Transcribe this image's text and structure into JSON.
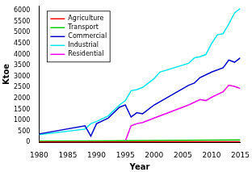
{
  "chart_data": {
    "type": "line",
    "x_label": "Year",
    "y_label": "Ktoe",
    "xlim": [
      1980,
      2015
    ],
    "xticks": [
      1980,
      1985,
      1990,
      1995,
      2000,
      2005,
      2010,
      2015
    ],
    "ylim": [
      0,
      6200
    ],
    "yticks": [
      0,
      500,
      1000,
      1500,
      2000,
      2500,
      3000,
      3500,
      4000,
      4500,
      5000,
      5500,
      6000
    ],
    "grid": false,
    "legend": "upper left",
    "series": [
      {
        "name": "Agriculture",
        "color": "#ff0000",
        "x": [
          1980,
          1990,
          1995,
          2000,
          2005,
          2010,
          2015
        ],
        "values": [
          15,
          18,
          20,
          22,
          25,
          28,
          30
        ]
      },
      {
        "name": "Transport",
        "color": "#00cc00",
        "x": [
          1980,
          1990,
          1995,
          2000,
          2005,
          2010,
          2015
        ],
        "values": [
          50,
          60,
          70,
          80,
          90,
          100,
          110
        ]
      },
      {
        "name": "Commercial",
        "color": "#0000cc",
        "x": [
          1980,
          1988,
          1989,
          1990,
          1992,
          1994,
          1995,
          1996,
          1997,
          1998,
          2000,
          2006,
          2007,
          2008,
          2010,
          2012,
          2013,
          2014,
          2015
        ],
        "values": [
          380,
          750,
          280,
          850,
          1100,
          1600,
          1700,
          1150,
          1350,
          1300,
          1700,
          2600,
          2700,
          2950,
          3200,
          3400,
          3750,
          3650,
          3850
        ]
      },
      {
        "name": "Industrial",
        "color": "#00e5ee",
        "x": [
          1980,
          1988,
          1989,
          1990,
          1992,
          1994,
          1995,
          1996,
          1997,
          1998,
          2000,
          2001,
          2006,
          2007,
          2008,
          2009,
          2010,
          2011,
          2012,
          2013,
          2014,
          2015
        ],
        "values": [
          350,
          600,
          850,
          950,
          1200,
          1700,
          1900,
          2350,
          2400,
          2500,
          2900,
          3200,
          3600,
          3850,
          3900,
          4000,
          4500,
          4900,
          4950,
          5400,
          5900,
          6100
        ]
      },
      {
        "name": "Residential",
        "color": "#ee00ee",
        "x": [
          1995,
          1996,
          1997,
          1998,
          2000,
          2006,
          2008,
          2009,
          2010,
          2012,
          2013,
          2014,
          2015
        ],
        "values": [
          50,
          750,
          850,
          900,
          1100,
          1700,
          1950,
          1900,
          2050,
          2300,
          2600,
          2550,
          2450
        ]
      }
    ]
  }
}
